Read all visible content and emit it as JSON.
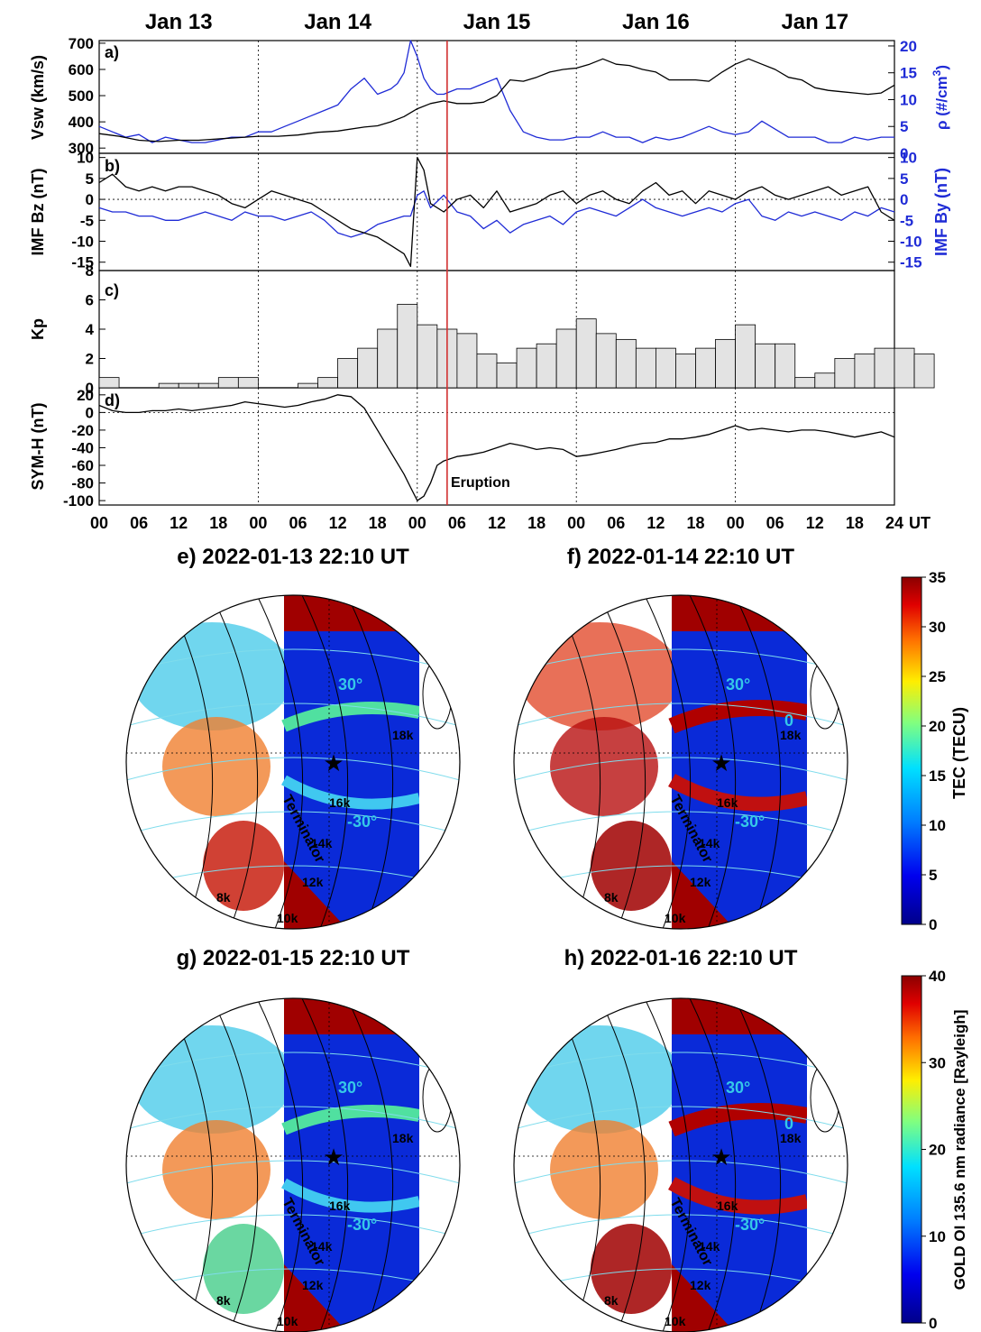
{
  "colors": {
    "vsw": "#000000",
    "density": "#1f2bd6",
    "bz": "#000000",
    "by": "#1f2bd6",
    "kp_fill": "#e3e3e3",
    "eruption": "#d23030",
    "contour_cyan": "#7fdcec",
    "lat_label": "#35c8e8"
  },
  "date_labels": [
    "Jan 13",
    "Jan 14",
    "Jan 15",
    "Jan 16",
    "Jan 17"
  ],
  "hour_ticks": [
    "00",
    "06",
    "12",
    "18",
    "00",
    "06",
    "12",
    "18",
    "00",
    "06",
    "12",
    "18",
    "00",
    "06",
    "12",
    "18",
    "00",
    "06",
    "12",
    "18",
    "24"
  ],
  "time_unit": "UT",
  "eruption_label": "Eruption",
  "panels": {
    "a": {
      "tag": "a)",
      "left_label": "Vsw (km/s)",
      "left_ticks": [
        "300",
        "400",
        "500",
        "600",
        "700"
      ],
      "right_label_prefix": "ρ (#/cm",
      "right_label_exp": "3",
      "right_label_suffix": ")",
      "right_ticks": [
        "0",
        "5",
        "10",
        "15",
        "20"
      ]
    },
    "b": {
      "tag": "b)",
      "left_label": "IMF Bz (nT)",
      "left_ticks": [
        "-15",
        "-10",
        "-5",
        "0",
        "5",
        "10"
      ],
      "right_label": "IMF By (nT)",
      "right_ticks": [
        "-15",
        "-10",
        "-5",
        "0",
        "5",
        "10"
      ]
    },
    "c": {
      "tag": "c)",
      "left_label": "Kp",
      "left_ticks": [
        "0",
        "2",
        "4",
        "6",
        "8"
      ]
    },
    "d": {
      "tag": "d)",
      "left_label": "SYM-H (nT)",
      "left_ticks": [
        "-100",
        "-80",
        "-60",
        "-40",
        "-20",
        "0",
        "20"
      ]
    }
  },
  "maps": [
    {
      "title": "e) 2022-01-13 22:10 UT"
    },
    {
      "title": "f) 2022-01-14 22:10 UT"
    },
    {
      "title": "g) 2022-01-15 22:10 UT"
    },
    {
      "title": "h) 2022-01-16 22:10 UT"
    }
  ],
  "map_annotations": {
    "lat_north": "30°",
    "lat_equator": "0",
    "lat_south": "-30°",
    "terminator": "Terminator",
    "contours": [
      "8k",
      "10k",
      "12k",
      "14k",
      "16k",
      "18k"
    ]
  },
  "colorbars": [
    {
      "label": "TEC (TECU)",
      "ticks": [
        "0",
        "5",
        "10",
        "15",
        "20",
        "25",
        "30",
        "35"
      ],
      "max": 35
    },
    {
      "label": "GOLD OI 135.6 nm radiance [Rayleigh]",
      "ticks": [
        "0",
        "10",
        "20",
        "30",
        "40"
      ],
      "max": 40
    }
  ],
  "chart_data": [
    {
      "type": "line",
      "panel": "a",
      "x_unit": "hours since 2022-01-13 00 UT",
      "xlim": [
        0,
        120
      ],
      "series": [
        {
          "name": "Vsw",
          "axis": "left",
          "ylim": [
            280,
            710
          ],
          "x": [
            0,
            3,
            6,
            9,
            12,
            15,
            18,
            21,
            24,
            27,
            30,
            33,
            36,
            40,
            42,
            44,
            46,
            48,
            50,
            52,
            54,
            56,
            58,
            60,
            62,
            64,
            66,
            68,
            70,
            72,
            74,
            76,
            78,
            80,
            82,
            84,
            86,
            88,
            90,
            92,
            94,
            96,
            98,
            100,
            102,
            104,
            106,
            108,
            110,
            112,
            114,
            116,
            118,
            120
          ],
          "y": [
            355,
            345,
            330,
            325,
            330,
            330,
            335,
            340,
            345,
            345,
            350,
            360,
            365,
            380,
            385,
            400,
            420,
            450,
            470,
            480,
            470,
            470,
            475,
            500,
            560,
            555,
            570,
            590,
            600,
            605,
            620,
            640,
            620,
            615,
            600,
            590,
            560,
            560,
            560,
            555,
            590,
            620,
            640,
            620,
            600,
            570,
            560,
            530,
            520,
            515,
            510,
            505,
            510,
            540
          ]
        },
        {
          "name": "Density",
          "axis": "right",
          "ylim": [
            0,
            21
          ],
          "x": [
            0,
            2,
            4,
            6,
            8,
            10,
            12,
            14,
            16,
            18,
            20,
            22,
            24,
            26,
            28,
            30,
            32,
            34,
            36,
            38,
            40,
            42,
            44,
            45,
            46,
            47,
            48,
            49,
            50,
            51,
            52,
            53,
            54,
            56,
            58,
            60,
            62,
            64,
            66,
            68,
            70,
            72,
            74,
            76,
            78,
            80,
            82,
            84,
            86,
            88,
            90,
            92,
            94,
            96,
            98,
            100,
            102,
            104,
            106,
            108,
            110,
            112,
            114,
            116,
            118,
            120
          ],
          "y": [
            5,
            4,
            3,
            3.5,
            2,
            3,
            2.5,
            2,
            2,
            2.5,
            3,
            3,
            4,
            4,
            5,
            6,
            7,
            8,
            9,
            12,
            14,
            11,
            12,
            13,
            15,
            21,
            18,
            14,
            12,
            11,
            11,
            11.5,
            12,
            12,
            13,
            14,
            8,
            4,
            3,
            2.5,
            2.5,
            3,
            3,
            4,
            3,
            3,
            2,
            3,
            2.5,
            3,
            4,
            5,
            4,
            3.5,
            4,
            6,
            4.5,
            3,
            3,
            3,
            2,
            2,
            3,
            2.5,
            3,
            3
          ]
        }
      ],
      "left_ticks": [
        300,
        400,
        500,
        600,
        700
      ],
      "right_ticks": [
        0,
        5,
        10,
        15,
        20
      ]
    },
    {
      "type": "line",
      "panel": "b",
      "x_unit": "hours since 2022-01-13 00 UT",
      "xlim": [
        0,
        120
      ],
      "ylim": [
        -17,
        11
      ],
      "series": [
        {
          "name": "IMF Bz",
          "axis": "left",
          "x": [
            0,
            2,
            4,
            6,
            8,
            10,
            12,
            14,
            16,
            18,
            20,
            22,
            24,
            26,
            28,
            30,
            32,
            34,
            36,
            38,
            40,
            42,
            44,
            46,
            47,
            48,
            49,
            50,
            52,
            54,
            56,
            58,
            60,
            62,
            64,
            66,
            68,
            70,
            72,
            74,
            76,
            78,
            80,
            82,
            84,
            86,
            88,
            90,
            92,
            94,
            96,
            98,
            100,
            102,
            104,
            106,
            108,
            110,
            112,
            114,
            116,
            118,
            120
          ],
          "y": [
            4,
            6,
            3,
            2,
            3,
            2,
            3,
            3,
            2,
            1,
            -1,
            -2,
            0,
            2,
            1,
            0,
            -1,
            -3,
            -5,
            -7,
            -8,
            -9,
            -11,
            -13,
            -16,
            10,
            7,
            -1,
            -3,
            0,
            1,
            -2,
            2,
            -3,
            -2,
            -1,
            1,
            2,
            -1,
            1,
            2,
            0,
            -1,
            2,
            4,
            1,
            2,
            -1,
            2,
            1,
            0,
            2,
            3,
            1,
            0,
            1,
            2,
            3,
            1,
            2,
            3,
            -3,
            -5
          ]
        },
        {
          "name": "IMF By",
          "axis": "right",
          "x": [
            0,
            2,
            4,
            6,
            8,
            10,
            12,
            14,
            16,
            18,
            20,
            22,
            24,
            26,
            28,
            30,
            32,
            34,
            36,
            38,
            40,
            42,
            44,
            46,
            47,
            48,
            49,
            50,
            52,
            54,
            56,
            58,
            60,
            62,
            64,
            66,
            68,
            70,
            72,
            74,
            76,
            78,
            80,
            82,
            84,
            86,
            88,
            90,
            92,
            94,
            96,
            98,
            100,
            102,
            104,
            106,
            108,
            110,
            112,
            114,
            116,
            118,
            120
          ],
          "y": [
            -2,
            -3,
            -3,
            -4,
            -4,
            -5,
            -5,
            -4,
            -3,
            -4,
            -5,
            -3,
            -4,
            -4,
            -5,
            -4,
            -3,
            -5,
            -8,
            -9,
            -8,
            -6,
            -5,
            -4,
            -4,
            1,
            2,
            -2,
            1,
            -3,
            -4,
            -7,
            -5,
            -8,
            -6,
            -5,
            -4,
            -6,
            -3,
            -2,
            -3,
            -4,
            -2,
            0,
            -2,
            -3,
            -4,
            -3,
            -2,
            -3,
            -1,
            0,
            -4,
            -5,
            -3,
            -4,
            -3,
            -4,
            -5,
            -3,
            -4,
            -2,
            -3
          ]
        }
      ],
      "ticks": [
        -15,
        -10,
        -5,
        0,
        5,
        10
      ]
    },
    {
      "type": "bar",
      "panel": "c",
      "x_unit": "3-hour bins from 2022-01-13 00 UT",
      "ylim": [
        0,
        8
      ],
      "values": [
        0.7,
        0,
        0,
        0.3,
        0.3,
        0.3,
        0.7,
        0.7,
        0,
        0,
        0.3,
        0.7,
        2,
        2.7,
        4,
        5.7,
        4.3,
        4,
        3.7,
        2.3,
        1.7,
        2.7,
        3,
        4,
        4.7,
        3.7,
        3.3,
        2.7,
        2.7,
        2.3,
        2.7,
        3.3,
        4.3,
        3,
        3,
        0.7,
        1,
        2,
        2.3,
        2.7,
        2.7,
        2.3
      ],
      "ticks": [
        0,
        2,
        4,
        6,
        8
      ]
    },
    {
      "type": "line",
      "panel": "d",
      "x_unit": "hours since 2022-01-13 00 UT",
      "xlim": [
        0,
        120
      ],
      "ylim": [
        -105,
        28
      ],
      "series": [
        {
          "name": "SYM-H",
          "x": [
            0,
            2,
            4,
            6,
            8,
            10,
            12,
            14,
            16,
            18,
            20,
            22,
            24,
            26,
            28,
            30,
            32,
            34,
            36,
            38,
            40,
            42,
            44,
            46,
            47,
            48,
            49,
            50,
            51,
            52,
            54,
            56,
            58,
            60,
            62,
            64,
            66,
            68,
            70,
            72,
            74,
            76,
            78,
            80,
            82,
            84,
            86,
            88,
            90,
            92,
            94,
            96,
            98,
            100,
            102,
            104,
            106,
            108,
            110,
            112,
            114,
            116,
            118,
            120
          ],
          "y": [
            8,
            2,
            0,
            0,
            2,
            2,
            4,
            2,
            4,
            6,
            8,
            12,
            10,
            8,
            6,
            8,
            12,
            15,
            20,
            18,
            5,
            -20,
            -45,
            -70,
            -85,
            -100,
            -95,
            -80,
            -60,
            -55,
            -50,
            -48,
            -45,
            -40,
            -35,
            -38,
            -42,
            -40,
            -42,
            -50,
            -48,
            -45,
            -42,
            -38,
            -35,
            -34,
            -30,
            -30,
            -28,
            -25,
            -20,
            -15,
            -20,
            -18,
            -20,
            -22,
            -20,
            -20,
            -22,
            -25,
            -28,
            -25,
            -22,
            -28
          ]
        }
      ],
      "ticks": [
        -100,
        -80,
        -60,
        -40,
        -20,
        0,
        20
      ]
    }
  ]
}
